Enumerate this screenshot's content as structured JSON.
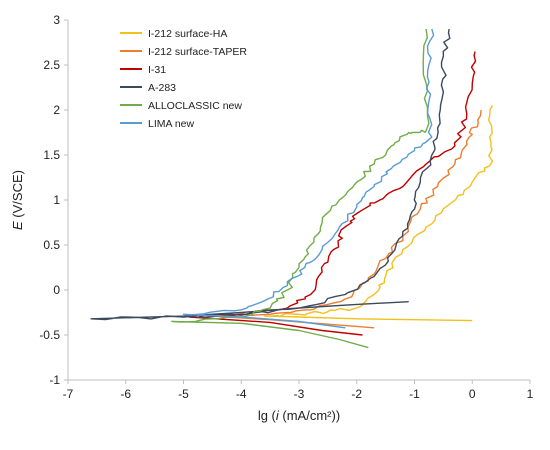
{
  "chart_data": {
    "type": "line",
    "title": "",
    "xlabel": "lg (i (mA/cm²))",
    "ylabel": "E (V/SCE)",
    "xlim": [
      -7,
      1
    ],
    "ylim": [
      -1,
      3
    ],
    "xticks": [
      -7,
      -6,
      -5,
      -4,
      -3,
      -2,
      -1,
      0,
      1
    ],
    "yticks": [
      -1,
      -0.5,
      0,
      0.5,
      1,
      1.5,
      2,
      2.5,
      3
    ],
    "xtick_labels": [
      "-7",
      "-6",
      "-5",
      "-4",
      "-3",
      "-2",
      "-1",
      "0",
      "1"
    ],
    "ytick_labels": [
      "-1",
      "-0.5",
      "0",
      "0.5",
      "1",
      "1.5",
      "2",
      "2.5",
      "3"
    ],
    "grid": false,
    "legend_position": "top-left",
    "series": [
      {
        "name": "I-212 surface-HA",
        "color": "#f2c01e",
        "cathodic": [
          [
            0.0,
            -0.34
          ],
          [
            -1.0,
            -0.33
          ],
          [
            -2.0,
            -0.32
          ],
          [
            -3.0,
            -0.3
          ],
          [
            -3.6,
            -0.29
          ]
        ],
        "anodic": [
          [
            -3.6,
            -0.29
          ],
          [
            -3.0,
            -0.27
          ],
          [
            -2.5,
            -0.24
          ],
          [
            -2.0,
            -0.2
          ],
          [
            -1.7,
            -0.05
          ],
          [
            -1.5,
            0.15
          ],
          [
            -1.2,
            0.45
          ],
          [
            -0.8,
            0.7
          ],
          [
            -0.4,
            0.95
          ],
          [
            0.0,
            1.2
          ],
          [
            0.3,
            1.38
          ],
          [
            0.3,
            1.7
          ],
          [
            0.35,
            2.05
          ]
        ]
      },
      {
        "name": "I-212 surface-TAPER",
        "color": "#ed7d31",
        "cathodic": [
          [
            -1.7,
            -0.42
          ],
          [
            -2.5,
            -0.38
          ],
          [
            -3.5,
            -0.33
          ],
          [
            -4.5,
            -0.29
          ]
        ],
        "anodic": [
          [
            -4.5,
            -0.29
          ],
          [
            -3.5,
            -0.27
          ],
          [
            -2.8,
            -0.22
          ],
          [
            -2.2,
            -0.1
          ],
          [
            -1.8,
            0.1
          ],
          [
            -1.5,
            0.35
          ],
          [
            -1.2,
            0.6
          ],
          [
            -0.9,
            0.9
          ],
          [
            -0.6,
            1.15
          ],
          [
            -0.3,
            1.4
          ],
          [
            -0.1,
            1.65
          ],
          [
            0.1,
            1.85
          ],
          [
            0.15,
            2.0
          ]
        ]
      },
      {
        "name": "I-31",
        "color": "#c00000",
        "cathodic": [
          [
            -1.9,
            -0.5
          ],
          [
            -2.6,
            -0.45
          ],
          [
            -3.5,
            -0.36
          ],
          [
            -4.9,
            -0.3
          ]
        ],
        "anodic": [
          [
            -4.9,
            -0.3
          ],
          [
            -4.0,
            -0.27
          ],
          [
            -3.2,
            -0.2
          ],
          [
            -2.8,
            -0.05
          ],
          [
            -2.6,
            0.2
          ],
          [
            -2.4,
            0.45
          ],
          [
            -2.2,
            0.7
          ],
          [
            -2.0,
            0.85
          ],
          [
            -1.6,
            1.0
          ],
          [
            -1.2,
            1.15
          ],
          [
            -0.8,
            1.4
          ],
          [
            -0.3,
            1.6
          ],
          [
            -0.1,
            1.9
          ],
          [
            0.0,
            2.3
          ],
          [
            0.05,
            2.65
          ]
        ]
      },
      {
        "name": "A-283",
        "color": "#3b4a5c",
        "cathodic": [
          [
            -1.1,
            -0.13
          ],
          [
            -2.0,
            -0.16
          ],
          [
            -3.0,
            -0.2
          ],
          [
            -4.0,
            -0.25
          ],
          [
            -5.0,
            -0.29
          ],
          [
            -6.6,
            -0.32
          ]
        ],
        "anodic": [
          [
            -6.6,
            -0.32
          ],
          [
            -5.0,
            -0.3
          ],
          [
            -4.0,
            -0.28
          ],
          [
            -3.0,
            -0.2
          ],
          [
            -2.2,
            -0.05
          ],
          [
            -1.7,
            0.15
          ],
          [
            -1.4,
            0.4
          ],
          [
            -1.2,
            0.65
          ],
          [
            -1.0,
            0.9
          ],
          [
            -0.9,
            1.2
          ],
          [
            -0.7,
            1.5
          ],
          [
            -0.6,
            1.8
          ],
          [
            -0.5,
            2.2
          ],
          [
            -0.5,
            2.6
          ],
          [
            -0.4,
            2.9
          ]
        ]
      },
      {
        "name": "ALLOCLASSIC new",
        "color": "#70ad47",
        "cathodic": [
          [
            -1.8,
            -0.64
          ],
          [
            -2.3,
            -0.55
          ],
          [
            -3.0,
            -0.45
          ],
          [
            -4.0,
            -0.37
          ],
          [
            -5.2,
            -0.35
          ]
        ],
        "anodic": [
          [
            -5.2,
            -0.35
          ],
          [
            -4.0,
            -0.3
          ],
          [
            -3.5,
            -0.2
          ],
          [
            -3.2,
            0.0
          ],
          [
            -3.0,
            0.25
          ],
          [
            -2.8,
            0.5
          ],
          [
            -2.6,
            0.75
          ],
          [
            -2.3,
            1.0
          ],
          [
            -2.0,
            1.2
          ],
          [
            -1.7,
            1.4
          ],
          [
            -1.4,
            1.6
          ],
          [
            -1.1,
            1.75
          ],
          [
            -0.8,
            1.77
          ],
          [
            -0.8,
            2.3
          ],
          [
            -0.8,
            2.9
          ]
        ]
      },
      {
        "name": "LIMA new",
        "color": "#5b9bd5",
        "cathodic": [
          [
            -2.2,
            -0.42
          ],
          [
            -3.0,
            -0.35
          ],
          [
            -4.0,
            -0.3
          ],
          [
            -5.0,
            -0.27
          ]
        ],
        "anodic": [
          [
            -5.0,
            -0.27
          ],
          [
            -4.0,
            -0.22
          ],
          [
            -3.6,
            -0.12
          ],
          [
            -3.2,
            0.05
          ],
          [
            -2.9,
            0.25
          ],
          [
            -2.6,
            0.45
          ],
          [
            -2.3,
            0.7
          ],
          [
            -2.0,
            0.95
          ],
          [
            -1.7,
            1.15
          ],
          [
            -1.4,
            1.35
          ],
          [
            -1.0,
            1.55
          ],
          [
            -0.7,
            1.7
          ],
          [
            -0.75,
            2.1
          ],
          [
            -0.75,
            2.5
          ],
          [
            -0.7,
            2.9
          ]
        ]
      }
    ]
  }
}
